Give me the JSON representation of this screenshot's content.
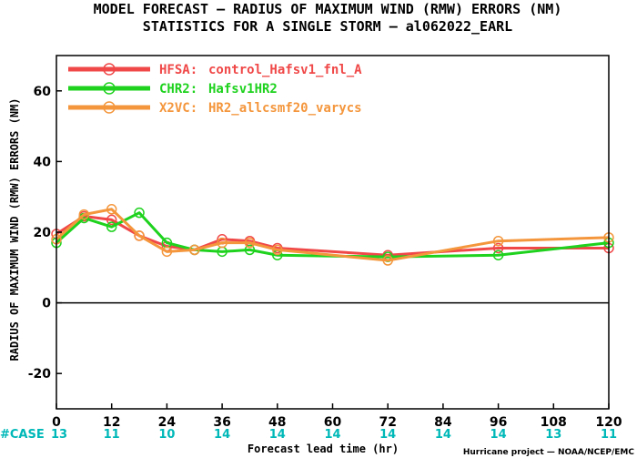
{
  "title_line1": "MODEL FORECAST — RADIUS OF MAXIMUM WIND (RMW) ERRORS (NM)",
  "title_line2": "STATISTICS FOR A SINGLE STORM — al062022_EARL",
  "credit": "Hurricane project — NOAA/NCEP/EMC",
  "case_label": "#CASE",
  "chart_data": {
    "type": "line",
    "title": "MODEL FORECAST — RADIUS OF MAXIMUM WIND (RMW) ERRORS (NM)",
    "subtitle": "STATISTICS FOR A SINGLE STORM — al062022_EARL",
    "xlabel": "Forecast lead time (hr)",
    "ylabel": "RADIUS OF MAXIMUM WIND (RMW) ERRORS (NM)",
    "xlim": [
      0,
      120
    ],
    "ylim": [
      -30,
      70
    ],
    "x_ticks": [
      0,
      12,
      24,
      36,
      48,
      60,
      72,
      84,
      96,
      108,
      120
    ],
    "y_ticks": [
      -20,
      0,
      20,
      40,
      60
    ],
    "y_tick_labels": [
      "-20",
      "0",
      "20",
      "40",
      "60"
    ],
    "zero_line": true,
    "grid": false,
    "legend_position": "top-left",
    "case_counts": [
      {
        "x": 0,
        "label": "13"
      },
      {
        "x": 12,
        "label": "11"
      },
      {
        "x": 24,
        "label": "10"
      },
      {
        "x": 36,
        "label": "14"
      },
      {
        "x": 48,
        "label": "14"
      },
      {
        "x": 60,
        "label": "14"
      },
      {
        "x": 72,
        "label": "14"
      },
      {
        "x": 84,
        "label": "14"
      },
      {
        "x": 96,
        "label": "14"
      },
      {
        "x": 108,
        "label": "13"
      },
      {
        "x": 120,
        "label": "11"
      }
    ],
    "series": [
      {
        "name": "HFSA:",
        "desc": "control_Hafsv1_fnl_A",
        "color": "#f04848",
        "x": [
          0,
          6,
          12,
          18,
          24,
          30,
          36,
          42,
          48,
          72,
          96,
          120
        ],
        "y": [
          19.5,
          24.5,
          23.5,
          19,
          16,
          15,
          18,
          17.5,
          15.5,
          13.5,
          15.5,
          15.5
        ]
      },
      {
        "name": "CHR2:",
        "desc": "Hafsv1HR2",
        "color": "#1ed21e",
        "x": [
          0,
          6,
          12,
          18,
          24,
          30,
          36,
          42,
          48,
          72,
          96,
          120
        ],
        "y": [
          17,
          24,
          21.5,
          25.5,
          17,
          15,
          14.5,
          15,
          13.5,
          13,
          13.5,
          17
        ]
      },
      {
        "name": "X2VC:",
        "desc": "HR2_allcsmf20_varycs",
        "color": "#f4963c",
        "x": [
          0,
          6,
          12,
          18,
          24,
          30,
          36,
          42,
          48,
          72,
          96,
          120
        ],
        "y": [
          18,
          25,
          26.5,
          19,
          14.5,
          15,
          17,
          17,
          15,
          12,
          17.5,
          18.5
        ]
      }
    ]
  }
}
